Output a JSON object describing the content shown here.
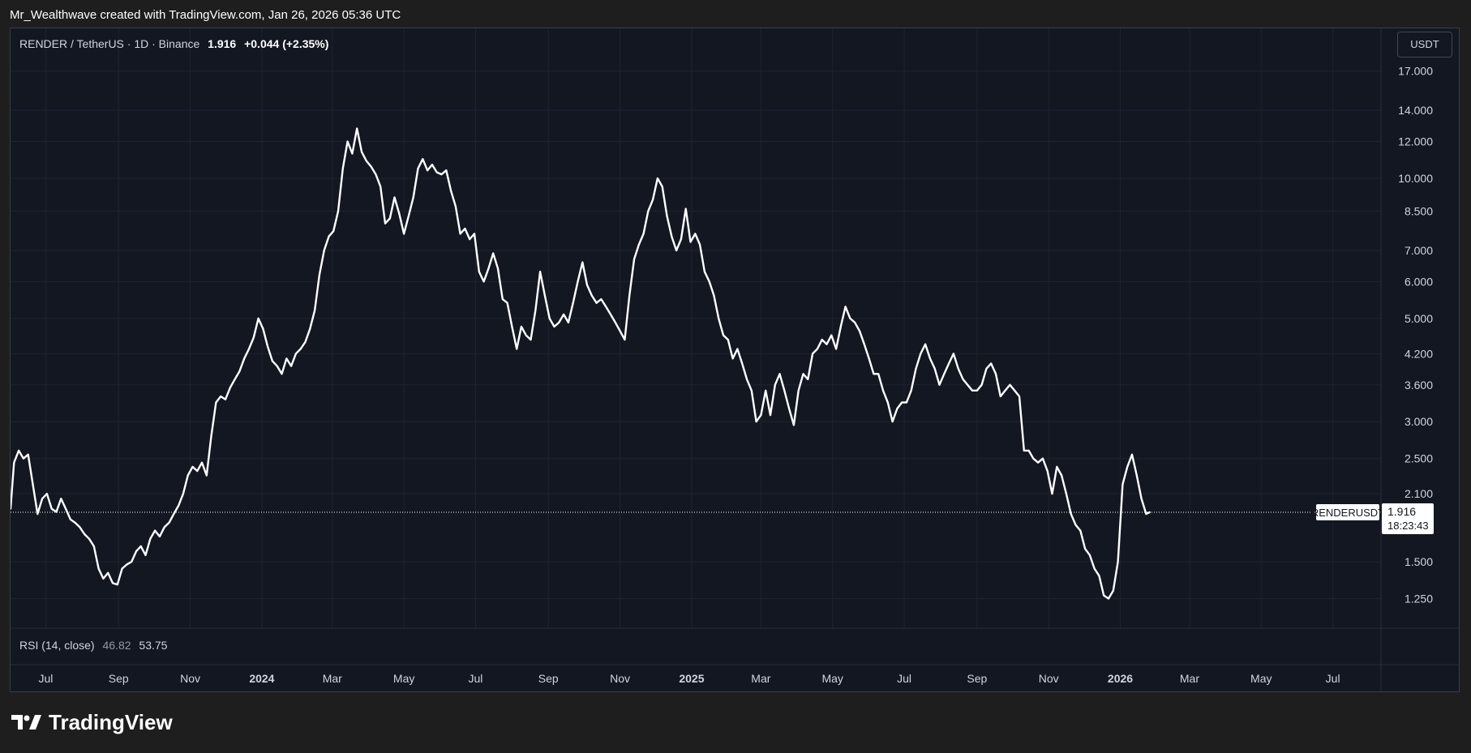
{
  "attribution": "Mr_Wealthwave created with TradingView.com, Jan 26, 2026 05:36 UTC",
  "header": {
    "symbol": "RENDER / TetherUS · 1D · Binance",
    "price": "1.916",
    "change": "+0.044 (+2.35%)"
  },
  "currency": "USDT",
  "price_tag": {
    "symbol": "RENDERUSDT",
    "price": "1.916",
    "countdown": "18:23:43"
  },
  "rsi": {
    "label": "RSI (14, close)",
    "value1": "46.82",
    "value2": "53.75"
  },
  "footer": {
    "brand": "TradingView"
  },
  "colors": {
    "background": "#131722",
    "grid": "#1f2330",
    "line": "#ffffff",
    "text": "#d1d4dc"
  },
  "chart_data": {
    "type": "line",
    "title": "",
    "xlabel": "",
    "ylabel": "",
    "y_scale": "log",
    "ylim": [
      1.08,
      21.0
    ],
    "xlim": [
      "2023-06-01",
      "2026-08-11"
    ],
    "y_ticks": [
      "17.000",
      "14.000",
      "12.000",
      "10.000",
      "8.500",
      "7.000",
      "6.000",
      "5.000",
      "4.200",
      "3.600",
      "3.000",
      "2.500",
      "2.100",
      "1.500",
      "1.250"
    ],
    "x_ticks": [
      {
        "date": "2023-07-01",
        "label": "Jul",
        "bold": false
      },
      {
        "date": "2023-09-01",
        "label": "Sep",
        "bold": false
      },
      {
        "date": "2023-11-01",
        "label": "Nov",
        "bold": false
      },
      {
        "date": "2024-01-01",
        "label": "2024",
        "bold": true
      },
      {
        "date": "2024-03-01",
        "label": "Mar",
        "bold": false
      },
      {
        "date": "2024-05-01",
        "label": "May",
        "bold": false
      },
      {
        "date": "2024-07-01",
        "label": "Jul",
        "bold": false
      },
      {
        "date": "2024-09-01",
        "label": "Sep",
        "bold": false
      },
      {
        "date": "2024-11-01",
        "label": "Nov",
        "bold": false
      },
      {
        "date": "2025-01-01",
        "label": "2025",
        "bold": true
      },
      {
        "date": "2025-03-01",
        "label": "Mar",
        "bold": false
      },
      {
        "date": "2025-05-01",
        "label": "May",
        "bold": false
      },
      {
        "date": "2025-07-01",
        "label": "Jul",
        "bold": false
      },
      {
        "date": "2025-09-01",
        "label": "Sep",
        "bold": false
      },
      {
        "date": "2025-11-01",
        "label": "Nov",
        "bold": false
      },
      {
        "date": "2026-01-01",
        "label": "2026",
        "bold": true
      },
      {
        "date": "2026-03-01",
        "label": "Mar",
        "bold": false
      },
      {
        "date": "2026-05-01",
        "label": "May",
        "bold": false
      },
      {
        "date": "2026-07-01",
        "label": "Jul",
        "bold": false
      }
    ],
    "last_price": 1.916,
    "grid": true,
    "series": [
      {
        "name": "RENDERUSDT",
        "points": [
          [
            "2023-06-01",
            1.95
          ],
          [
            "2023-06-04",
            2.45
          ],
          [
            "2023-06-08",
            2.6
          ],
          [
            "2023-06-12",
            2.5
          ],
          [
            "2023-06-16",
            2.55
          ],
          [
            "2023-06-20",
            2.2
          ],
          [
            "2023-06-24",
            1.9
          ],
          [
            "2023-06-28",
            2.05
          ],
          [
            "2023-07-02",
            2.1
          ],
          [
            "2023-07-06",
            1.95
          ],
          [
            "2023-07-10",
            1.92
          ],
          [
            "2023-07-14",
            2.05
          ],
          [
            "2023-07-18",
            1.95
          ],
          [
            "2023-07-22",
            1.85
          ],
          [
            "2023-07-26",
            1.82
          ],
          [
            "2023-07-30",
            1.78
          ],
          [
            "2023-08-03",
            1.72
          ],
          [
            "2023-08-07",
            1.68
          ],
          [
            "2023-08-11",
            1.62
          ],
          [
            "2023-08-15",
            1.45
          ],
          [
            "2023-08-19",
            1.38
          ],
          [
            "2023-08-23",
            1.42
          ],
          [
            "2023-08-27",
            1.35
          ],
          [
            "2023-08-31",
            1.34
          ],
          [
            "2023-09-04",
            1.45
          ],
          [
            "2023-09-08",
            1.48
          ],
          [
            "2023-09-12",
            1.5
          ],
          [
            "2023-09-16",
            1.58
          ],
          [
            "2023-09-20",
            1.62
          ],
          [
            "2023-09-24",
            1.55
          ],
          [
            "2023-09-28",
            1.68
          ],
          [
            "2023-10-02",
            1.75
          ],
          [
            "2023-10-06",
            1.7
          ],
          [
            "2023-10-10",
            1.78
          ],
          [
            "2023-10-14",
            1.82
          ],
          [
            "2023-10-18",
            1.9
          ],
          [
            "2023-10-22",
            1.98
          ],
          [
            "2023-10-26",
            2.1
          ],
          [
            "2023-10-30",
            2.3
          ],
          [
            "2023-11-03",
            2.4
          ],
          [
            "2023-11-07",
            2.35
          ],
          [
            "2023-11-11",
            2.45
          ],
          [
            "2023-11-15",
            2.3
          ],
          [
            "2023-11-19",
            2.8
          ],
          [
            "2023-11-23",
            3.3
          ],
          [
            "2023-11-27",
            3.4
          ],
          [
            "2023-12-01",
            3.35
          ],
          [
            "2023-12-05",
            3.55
          ],
          [
            "2023-12-09",
            3.7
          ],
          [
            "2023-12-13",
            3.85
          ],
          [
            "2023-12-17",
            4.1
          ],
          [
            "2023-12-21",
            4.3
          ],
          [
            "2023-12-25",
            4.55
          ],
          [
            "2023-12-29",
            5.0
          ],
          [
            "2024-01-02",
            4.75
          ],
          [
            "2024-01-06",
            4.35
          ],
          [
            "2024-01-10",
            4.05
          ],
          [
            "2024-01-14",
            3.95
          ],
          [
            "2024-01-18",
            3.8
          ],
          [
            "2024-01-22",
            4.1
          ],
          [
            "2024-01-26",
            3.95
          ],
          [
            "2024-01-30",
            4.2
          ],
          [
            "2024-02-03",
            4.3
          ],
          [
            "2024-02-07",
            4.45
          ],
          [
            "2024-02-11",
            4.75
          ],
          [
            "2024-02-15",
            5.2
          ],
          [
            "2024-02-19",
            6.2
          ],
          [
            "2024-02-23",
            7.0
          ],
          [
            "2024-02-27",
            7.5
          ],
          [
            "2024-03-02",
            7.7
          ],
          [
            "2024-03-06",
            8.5
          ],
          [
            "2024-03-10",
            10.5
          ],
          [
            "2024-03-14",
            12.0
          ],
          [
            "2024-03-18",
            11.3
          ],
          [
            "2024-03-22",
            12.8
          ],
          [
            "2024-03-26",
            11.4
          ],
          [
            "2024-03-30",
            10.9
          ],
          [
            "2024-04-03",
            10.6
          ],
          [
            "2024-04-07",
            10.2
          ],
          [
            "2024-04-11",
            9.6
          ],
          [
            "2024-04-15",
            8.0
          ],
          [
            "2024-04-19",
            8.2
          ],
          [
            "2024-04-23",
            9.1
          ],
          [
            "2024-04-27",
            8.4
          ],
          [
            "2024-05-01",
            7.6
          ],
          [
            "2024-05-05",
            8.3
          ],
          [
            "2024-05-09",
            9.1
          ],
          [
            "2024-05-13",
            10.5
          ],
          [
            "2024-05-17",
            11.0
          ],
          [
            "2024-05-21",
            10.4
          ],
          [
            "2024-05-25",
            10.7
          ],
          [
            "2024-05-29",
            10.3
          ],
          [
            "2024-06-02",
            10.2
          ],
          [
            "2024-06-06",
            10.4
          ],
          [
            "2024-06-10",
            9.4
          ],
          [
            "2024-06-14",
            8.7
          ],
          [
            "2024-06-18",
            7.6
          ],
          [
            "2024-06-22",
            7.8
          ],
          [
            "2024-06-26",
            7.4
          ],
          [
            "2024-06-30",
            7.6
          ],
          [
            "2024-07-04",
            6.3
          ],
          [
            "2024-07-08",
            6.0
          ],
          [
            "2024-07-12",
            6.4
          ],
          [
            "2024-07-16",
            6.9
          ],
          [
            "2024-07-20",
            6.4
          ],
          [
            "2024-07-24",
            5.5
          ],
          [
            "2024-07-28",
            5.4
          ],
          [
            "2024-08-01",
            4.8
          ],
          [
            "2024-08-05",
            4.3
          ],
          [
            "2024-08-09",
            4.8
          ],
          [
            "2024-08-13",
            4.6
          ],
          [
            "2024-08-17",
            4.5
          ],
          [
            "2024-08-21",
            5.2
          ],
          [
            "2024-08-25",
            6.3
          ],
          [
            "2024-08-29",
            5.6
          ],
          [
            "2024-09-02",
            5.0
          ],
          [
            "2024-09-06",
            4.8
          ],
          [
            "2024-09-10",
            4.9
          ],
          [
            "2024-09-14",
            5.1
          ],
          [
            "2024-09-18",
            4.9
          ],
          [
            "2024-09-22",
            5.4
          ],
          [
            "2024-09-26",
            6.0
          ],
          [
            "2024-09-30",
            6.6
          ],
          [
            "2024-10-04",
            5.9
          ],
          [
            "2024-10-08",
            5.6
          ],
          [
            "2024-10-12",
            5.4
          ],
          [
            "2024-10-16",
            5.5
          ],
          [
            "2024-10-20",
            5.3
          ],
          [
            "2024-10-24",
            5.1
          ],
          [
            "2024-10-28",
            4.9
          ],
          [
            "2024-11-01",
            4.7
          ],
          [
            "2024-11-05",
            4.5
          ],
          [
            "2024-11-09",
            5.6
          ],
          [
            "2024-11-13",
            6.7
          ],
          [
            "2024-11-17",
            7.2
          ],
          [
            "2024-11-21",
            7.6
          ],
          [
            "2024-11-25",
            8.5
          ],
          [
            "2024-11-29",
            9.0
          ],
          [
            "2024-12-03",
            10.0
          ],
          [
            "2024-12-07",
            9.6
          ],
          [
            "2024-12-11",
            8.3
          ],
          [
            "2024-12-15",
            7.5
          ],
          [
            "2024-12-19",
            7.0
          ],
          [
            "2024-12-23",
            7.4
          ],
          [
            "2024-12-27",
            8.6
          ],
          [
            "2024-12-31",
            7.3
          ],
          [
            "2025-01-04",
            7.6
          ],
          [
            "2025-01-08",
            7.2
          ],
          [
            "2025-01-12",
            6.3
          ],
          [
            "2025-01-16",
            6.0
          ],
          [
            "2025-01-20",
            5.6
          ],
          [
            "2025-01-24",
            5.0
          ],
          [
            "2025-01-28",
            4.6
          ],
          [
            "2025-02-01",
            4.5
          ],
          [
            "2025-02-05",
            4.1
          ],
          [
            "2025-02-09",
            4.3
          ],
          [
            "2025-02-13",
            4.0
          ],
          [
            "2025-02-17",
            3.7
          ],
          [
            "2025-02-21",
            3.5
          ],
          [
            "2025-02-25",
            3.0
          ],
          [
            "2025-03-01",
            3.1
          ],
          [
            "2025-03-05",
            3.5
          ],
          [
            "2025-03-09",
            3.1
          ],
          [
            "2025-03-13",
            3.6
          ],
          [
            "2025-03-17",
            3.8
          ],
          [
            "2025-03-21",
            3.5
          ],
          [
            "2025-03-25",
            3.2
          ],
          [
            "2025-03-29",
            2.95
          ],
          [
            "2025-04-02",
            3.5
          ],
          [
            "2025-04-06",
            3.8
          ],
          [
            "2025-04-10",
            3.7
          ],
          [
            "2025-04-14",
            4.2
          ],
          [
            "2025-04-18",
            4.3
          ],
          [
            "2025-04-22",
            4.5
          ],
          [
            "2025-04-26",
            4.4
          ],
          [
            "2025-04-30",
            4.6
          ],
          [
            "2025-05-04",
            4.3
          ],
          [
            "2025-05-08",
            4.8
          ],
          [
            "2025-05-12",
            5.3
          ],
          [
            "2025-05-16",
            5.0
          ],
          [
            "2025-05-20",
            4.9
          ],
          [
            "2025-05-24",
            4.7
          ],
          [
            "2025-05-28",
            4.4
          ],
          [
            "2025-06-01",
            4.1
          ],
          [
            "2025-06-05",
            3.8
          ],
          [
            "2025-06-09",
            3.8
          ],
          [
            "2025-06-13",
            3.5
          ],
          [
            "2025-06-17",
            3.3
          ],
          [
            "2025-06-21",
            3.0
          ],
          [
            "2025-06-25",
            3.2
          ],
          [
            "2025-06-29",
            3.3
          ],
          [
            "2025-07-03",
            3.3
          ],
          [
            "2025-07-07",
            3.5
          ],
          [
            "2025-07-11",
            3.9
          ],
          [
            "2025-07-15",
            4.2
          ],
          [
            "2025-07-19",
            4.4
          ],
          [
            "2025-07-23",
            4.1
          ],
          [
            "2025-07-27",
            3.9
          ],
          [
            "2025-07-31",
            3.6
          ],
          [
            "2025-08-04",
            3.8
          ],
          [
            "2025-08-08",
            4.0
          ],
          [
            "2025-08-12",
            4.2
          ],
          [
            "2025-08-16",
            3.9
          ],
          [
            "2025-08-20",
            3.7
          ],
          [
            "2025-08-24",
            3.6
          ],
          [
            "2025-08-28",
            3.5
          ],
          [
            "2025-09-01",
            3.5
          ],
          [
            "2025-09-05",
            3.6
          ],
          [
            "2025-09-09",
            3.9
          ],
          [
            "2025-09-13",
            4.0
          ],
          [
            "2025-09-17",
            3.8
          ],
          [
            "2025-09-21",
            3.4
          ],
          [
            "2025-09-25",
            3.5
          ],
          [
            "2025-09-29",
            3.6
          ],
          [
            "2025-10-03",
            3.5
          ],
          [
            "2025-10-07",
            3.4
          ],
          [
            "2025-10-11",
            2.6
          ],
          [
            "2025-10-15",
            2.6
          ],
          [
            "2025-10-19",
            2.5
          ],
          [
            "2025-10-23",
            2.45
          ],
          [
            "2025-10-27",
            2.5
          ],
          [
            "2025-10-31",
            2.35
          ],
          [
            "2025-11-04",
            2.1
          ],
          [
            "2025-11-08",
            2.4
          ],
          [
            "2025-11-12",
            2.3
          ],
          [
            "2025-11-16",
            2.1
          ],
          [
            "2025-11-20",
            1.9
          ],
          [
            "2025-11-24",
            1.8
          ],
          [
            "2025-11-28",
            1.75
          ],
          [
            "2025-12-02",
            1.6
          ],
          [
            "2025-12-06",
            1.55
          ],
          [
            "2025-12-10",
            1.45
          ],
          [
            "2025-12-14",
            1.4
          ],
          [
            "2025-12-18",
            1.27
          ],
          [
            "2025-12-22",
            1.25
          ],
          [
            "2025-12-26",
            1.3
          ],
          [
            "2025-12-30",
            1.5
          ],
          [
            "2026-01-03",
            2.2
          ],
          [
            "2026-01-07",
            2.4
          ],
          [
            "2026-01-11",
            2.55
          ],
          [
            "2026-01-15",
            2.3
          ],
          [
            "2026-01-19",
            2.05
          ],
          [
            "2026-01-23",
            1.9
          ],
          [
            "2026-01-26",
            1.916
          ]
        ]
      }
    ]
  }
}
